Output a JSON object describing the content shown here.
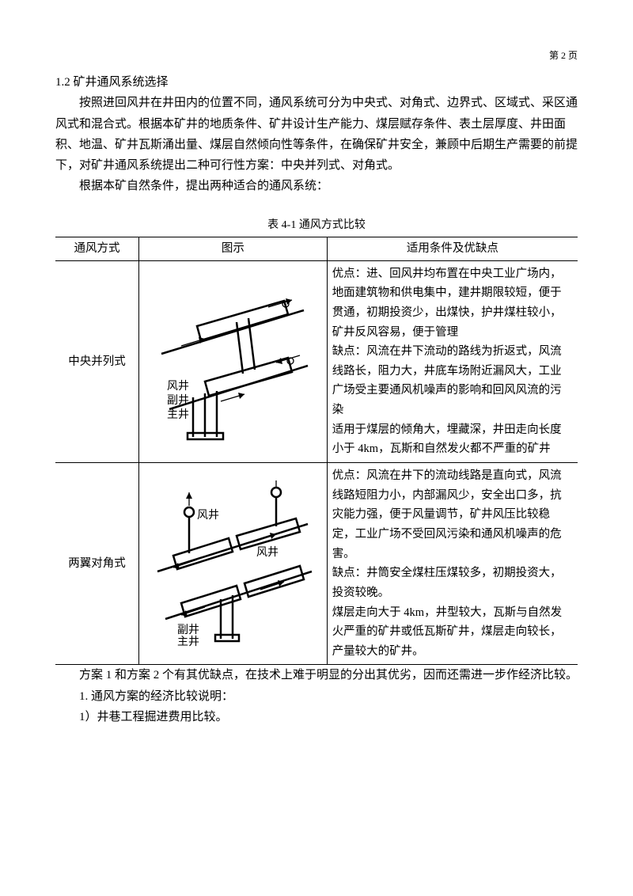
{
  "page_number": "第 2 页",
  "section_heading": "1.2 矿井通风系统选择",
  "intro_paragraph": "按照进回风井在井田内的位置不同，通风系统可分为中央式、对角式、边界式、区域式、采区通风式和混合式。根据本矿井的地质条件、矿井设计生产能力、煤层赋存条件、表土层厚度、井田面积、地温、矿井瓦斯涌出量、煤层自然倾向性等条件，在确保矿井安全，兼顾中后期生产需要的前提下，对矿井通风系统提出二种可行性方案：中央并列式、对角式。",
  "intro_line2": "根据本矿自然条件，提出两种适合的通风系统：",
  "table_title": "表 4-1 通风方式比较",
  "table": {
    "headers": [
      "通风方式",
      "图示",
      "适用条件及优缺点"
    ],
    "rows": [
      {
        "method": "中央并列式",
        "diagram_labels": {
          "fengJing": "风井",
          "fuJing": "副井",
          "zhuJing": "主井"
        },
        "desc": "优点：进、回风井均布置在中央工业广场内，地面建筑物和供电集中，建井期限较短，便于贯通，初期投资少，出煤快，护井煤柱较小，矿井反风容易，便于管理\n缺点：风流在井下流动的路线为折返式，风流线路长，阻力大，井底车场附近漏风大，工业广场受主要通风机噪声的影响和回风风流的污染\n适用于煤层的倾角大，埋藏深，井田走向长度小于 4km，瓦斯和自然发火都不严重的矿井"
      },
      {
        "method": "两翼对角式",
        "diagram_labels": {
          "fengJing": "风井",
          "fuJing": "副井",
          "zhuJing": "主井"
        },
        "desc": "优点：风流在井下的流动线路是直向式，风流线路短阻力小，内部漏风少，安全出口多，抗灾能力强，便于风量调节，矿井风压比较稳定，工业广场不受回风污染和通风机噪声的危害。\n缺点：井筒安全煤柱压煤较多，初期投资大，投资较晚。\n煤层走向大于 4km，井型较大，瓦斯与自然发火严重的矿井或低瓦斯矿井，煤层走向较长，产量较大的矿井。"
      }
    ]
  },
  "after_table_p1": "方案 1 和方案 2 个有其优缺点，在技术上难于明显的分出其优劣，因而还需进一步作经济比较。",
  "after_table_p2": "1. 通风方案的经济比较说明：",
  "after_table_p3": "1）井巷工程掘进费用比较。",
  "style": {
    "text_color": "#000000",
    "background_color": "#ffffff",
    "body_font_size": 15,
    "table_font_size": 14.5,
    "line_height": 1.75,
    "stroke_color": "#000000",
    "stroke_width_heavy": 2.5,
    "stroke_width_light": 1.2
  }
}
